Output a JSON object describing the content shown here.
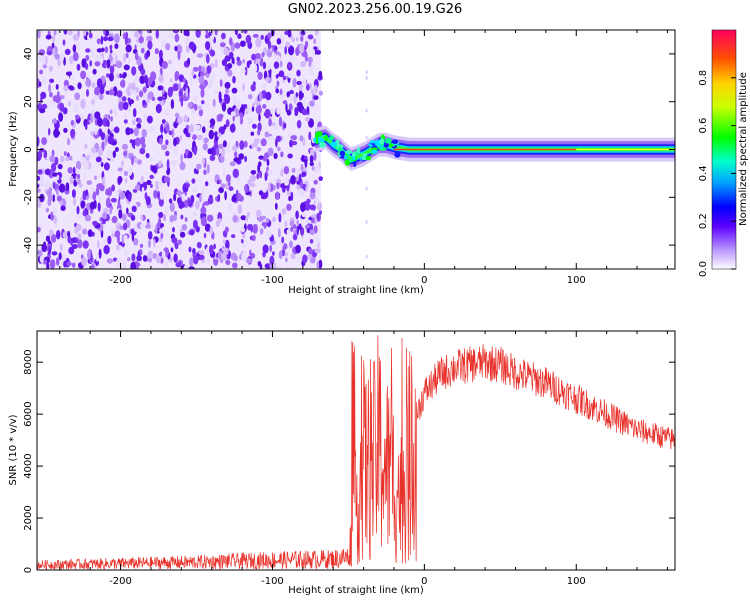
{
  "title": "GN02.2023.256.00.19.G26",
  "chart_data": [
    {
      "type": "heatmap",
      "xlabel": "Height of straight line (km)",
      "ylabel": "Frequency (Hz)",
      "xlim": [
        -255,
        165
      ],
      "ylim": [
        -50,
        50
      ],
      "xticks": [
        -200,
        -100,
        0,
        100
      ],
      "yticks": [
        -40,
        -20,
        0,
        20,
        40
      ],
      "colorbar": {
        "label": "Normalized spectral amplitude",
        "range": [
          0.0,
          1.0
        ],
        "ticks": [
          0.0,
          0.2,
          0.4,
          0.6,
          0.8
        ]
      },
      "regions": {
        "noise_end_x": -68,
        "signal_start_x": -75,
        "carrier_track": [
          [
            -72,
            4
          ],
          [
            -65,
            5
          ],
          [
            -60,
            2
          ],
          [
            -55,
            0
          ],
          [
            -52,
            -2
          ],
          [
            -48,
            -4
          ],
          [
            -44,
            -3
          ],
          [
            -40,
            -2
          ],
          [
            -35,
            0
          ],
          [
            -30,
            2
          ],
          [
            -25,
            2
          ],
          [
            -20,
            1
          ],
          [
            -10,
            0
          ],
          [
            0,
            0
          ],
          [
            50,
            0
          ],
          [
            100,
            0
          ],
          [
            165,
            0
          ]
        ]
      }
    },
    {
      "type": "line",
      "xlabel": "Height of straight line (km)",
      "ylabel": "SNR (10 * v/v)",
      "xlim": [
        -255,
        165
      ],
      "ylim": [
        0,
        9200
      ],
      "xticks": [
        -200,
        -100,
        0,
        100
      ],
      "yticks": [
        0,
        2000,
        4000,
        6000,
        8000
      ],
      "color": "#e8312a",
      "profile": [
        [
          -255,
          200
        ],
        [
          -200,
          250
        ],
        [
          -150,
          300
        ],
        [
          -100,
          380
        ],
        [
          -60,
          420
        ],
        [
          -50,
          500
        ],
        [
          -45,
          2500
        ],
        [
          -40,
          4200
        ],
        [
          -35,
          3800
        ],
        [
          -30,
          4800
        ],
        [
          -25,
          4000
        ],
        [
          -20,
          3500
        ],
        [
          -15,
          2800
        ],
        [
          -10,
          4200
        ],
        [
          -5,
          6000
        ],
        [
          0,
          6800
        ],
        [
          10,
          7500
        ],
        [
          20,
          7800
        ],
        [
          30,
          7900
        ],
        [
          40,
          8000
        ],
        [
          50,
          7900
        ],
        [
          60,
          7600
        ],
        [
          80,
          7200
        ],
        [
          100,
          6600
        ],
        [
          120,
          6000
        ],
        [
          140,
          5400
        ],
        [
          165,
          5000
        ]
      ]
    }
  ]
}
